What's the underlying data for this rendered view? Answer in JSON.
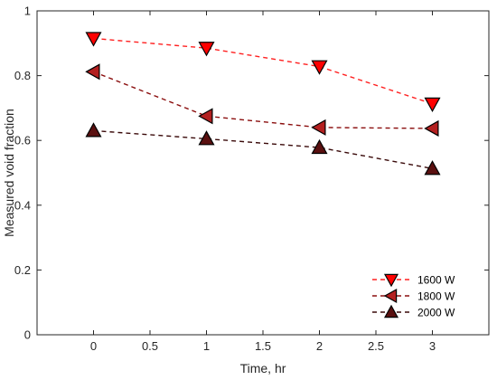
{
  "chart_data": {
    "type": "line",
    "title": "",
    "xlabel": "Time, hr",
    "ylabel": "Measured void fraction",
    "xlim": [
      -0.5,
      3.5
    ],
    "ylim": [
      0,
      1
    ],
    "xticks": [
      0,
      0.5,
      1,
      1.5,
      2,
      2.5,
      3
    ],
    "xtick_labels": [
      "0",
      "0.5",
      "1",
      "1.5",
      "2",
      "2.5",
      "3"
    ],
    "yticks": [
      0,
      0.2,
      0.4,
      0.6,
      0.8,
      1
    ],
    "ytick_labels": [
      "0",
      "0.2",
      "0.4",
      "0.6",
      "0.8",
      "1"
    ],
    "grid": false,
    "legend_position": "bottom-right",
    "x": [
      0,
      1,
      2,
      3
    ],
    "series": [
      {
        "name": "1600 W",
        "values": [
          0.915,
          0.885,
          0.828,
          0.713
        ],
        "marker": "triangle-down",
        "color": "#ff0000",
        "line_color": "#ff2020"
      },
      {
        "name": "1800 W",
        "values": [
          0.812,
          0.675,
          0.64,
          0.637
        ],
        "marker": "triangle-left",
        "color": "#b32020",
        "line_color": "#8b0f0f"
      },
      {
        "name": "2000 W",
        "values": [
          0.63,
          0.605,
          0.578,
          0.513
        ],
        "marker": "triangle-up",
        "color": "#5a1010",
        "line_color": "#3a0a0a"
      }
    ]
  }
}
